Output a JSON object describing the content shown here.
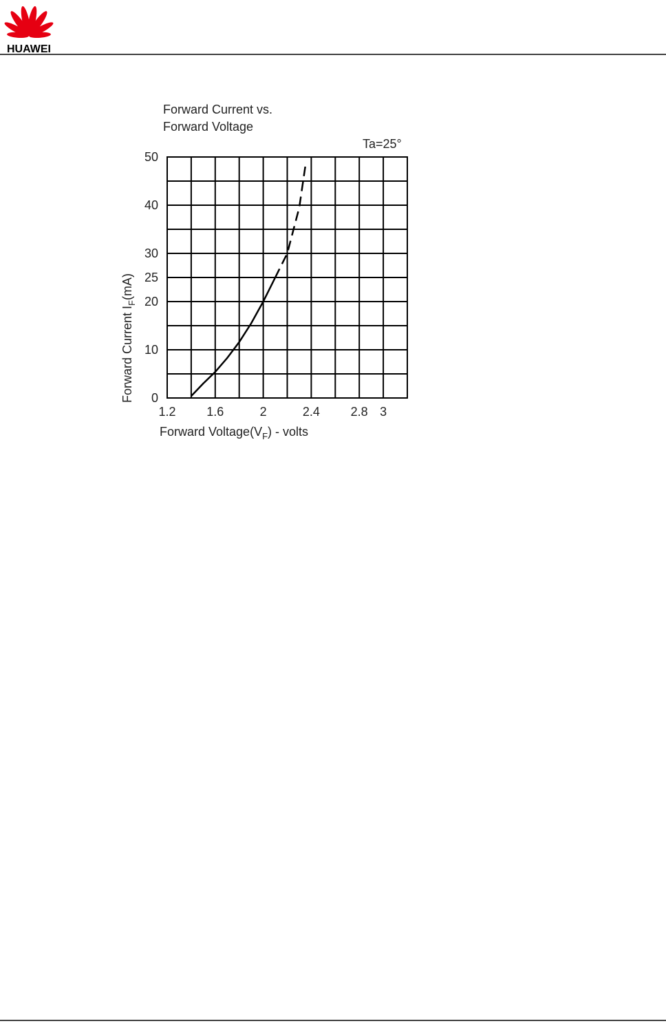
{
  "header": {
    "logo_text": "HUAWEI"
  },
  "chart_data": {
    "type": "line",
    "title": [
      "Forward Current vs.",
      "Forward Voltage"
    ],
    "annotation": "Ta=25°",
    "x_label": [
      "Forward Voltage(V",
      "F",
      ") - volts"
    ],
    "y_label": [
      "Forward Current I",
      "F",
      "(mA)"
    ],
    "series": [
      {
        "style": "solid",
        "color": "#000000",
        "x": [
          1.4,
          1.5,
          1.6,
          1.7,
          1.8,
          1.9,
          2.0,
          2.1
        ],
        "values": [
          0.4,
          3,
          5.4,
          8.3,
          11.6,
          15.5,
          20,
          25
        ]
      },
      {
        "style": "dashed",
        "color": "#000000",
        "x": [
          2.1,
          2.2,
          2.3,
          2.35
        ],
        "values": [
          25,
          30,
          39.5,
          48
        ]
      }
    ],
    "xlim": [
      1.2,
      3.2
    ],
    "xticks": [
      1.2,
      1.6,
      2.0,
      2.4,
      2.8,
      3.0
    ],
    "xminorticks": [
      1.4,
      1.8,
      2.2,
      2.6
    ],
    "ylim": [
      0,
      50
    ],
    "yticks": [
      0,
      10,
      20,
      25,
      30,
      40,
      50
    ],
    "yminorticks": [
      5,
      15,
      35,
      45
    ],
    "grid": true
  }
}
